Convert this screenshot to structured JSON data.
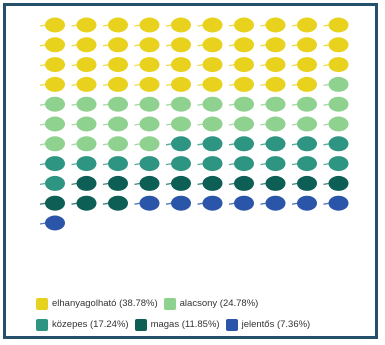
{
  "chart_data": {
    "type": "waffle",
    "title": "",
    "total_icons": 101,
    "columns": 10,
    "categories": [
      {
        "label": "elhanyagolható (38.78%)",
        "percent": 38.78,
        "count": 39,
        "color": "#e8d21e"
      },
      {
        "label": "alacsony (24.78%)",
        "percent": 24.78,
        "count": 25,
        "color": "#8fd18f"
      },
      {
        "label": "közepes (17.24%)",
        "percent": 17.24,
        "count": 17,
        "color": "#2e9582"
      },
      {
        "label": "magas (11.85%)",
        "percent": 11.85,
        "count": 12,
        "color": "#0d5e55"
      },
      {
        "label": "jelentős (7.36%)",
        "percent": 7.36,
        "count": 8,
        "color": "#2a55a8"
      }
    ]
  },
  "frame": {
    "border_color": "#24506b"
  }
}
